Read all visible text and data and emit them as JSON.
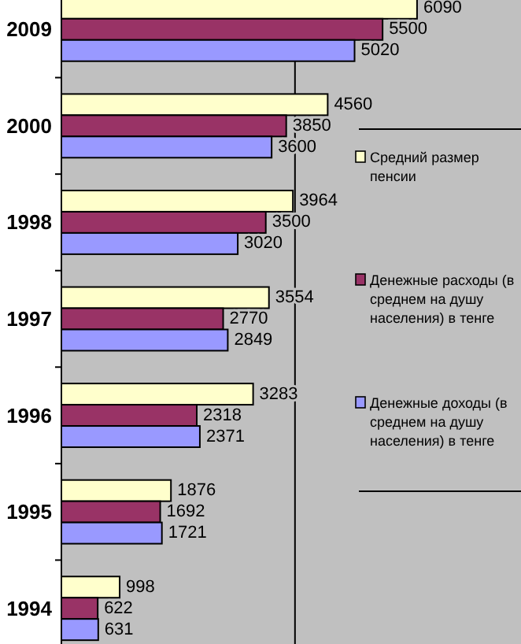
{
  "chart_data": {
    "type": "bar",
    "orientation": "horizontal",
    "categories": [
      "2009",
      "2000",
      "1998",
      "1997",
      "1996",
      "1995",
      "1994"
    ],
    "series": [
      {
        "name": "Средний размер пенсии",
        "color": "#ffffcc",
        "values": [
          6090,
          4560,
          3964,
          3554,
          3283,
          1876,
          998
        ]
      },
      {
        "name": "Денежные расходы (в среднем на душу населения) в тенге",
        "color": "#993366",
        "values": [
          5500,
          3850,
          3500,
          2770,
          2318,
          1692,
          622
        ]
      },
      {
        "name": "Денежные доходы (в среднем на душу населения) в тенге",
        "color": "#9999ff",
        "values": [
          5020,
          3600,
          3020,
          2849,
          2371,
          1721,
          631
        ]
      }
    ],
    "xlim": [
      0,
      7870
    ],
    "ref_lines": [
      {
        "axis": "x",
        "value": 4000
      }
    ],
    "data_labels": true,
    "legend": "right",
    "tick_labels": "y"
  }
}
